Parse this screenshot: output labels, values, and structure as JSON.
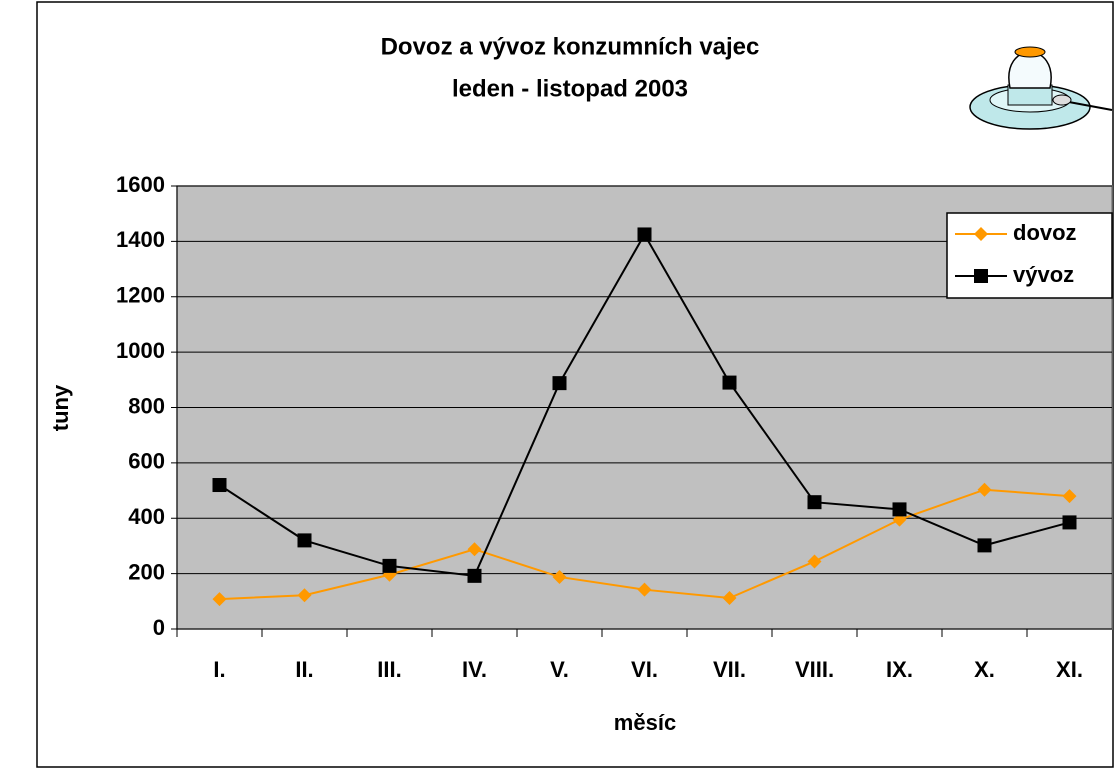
{
  "chart_data": {
    "type": "line",
    "title": "Dovoz a vývoz konzumních vajec",
    "subtitle": "leden - listopad 2003",
    "x_label": "měsíc",
    "y_label": "tuny",
    "categories": [
      "I.",
      "II.",
      "III.",
      "IV.",
      "V.",
      "VI.",
      "VII.",
      "VIII.",
      "IX.",
      "X.",
      "XI."
    ],
    "series": [
      {
        "name": "dovoz",
        "color": "#ff9900",
        "marker": "diamond",
        "values": [
          108,
          122,
          196,
          288,
          188,
          142,
          112,
          244,
          395,
          503,
          480
        ]
      },
      {
        "name": "vývoz",
        "color": "#000000",
        "marker": "square",
        "values": [
          520,
          320,
          228,
          192,
          888,
          1425,
          890,
          458,
          432,
          302,
          385
        ]
      }
    ],
    "ylim": [
      0,
      1600
    ],
    "yticks": [
      0,
      200,
      400,
      600,
      800,
      1000,
      1200,
      1400,
      1600
    ],
    "grid": true,
    "legend": "top-right",
    "plot_background": "#c0c0c0"
  }
}
